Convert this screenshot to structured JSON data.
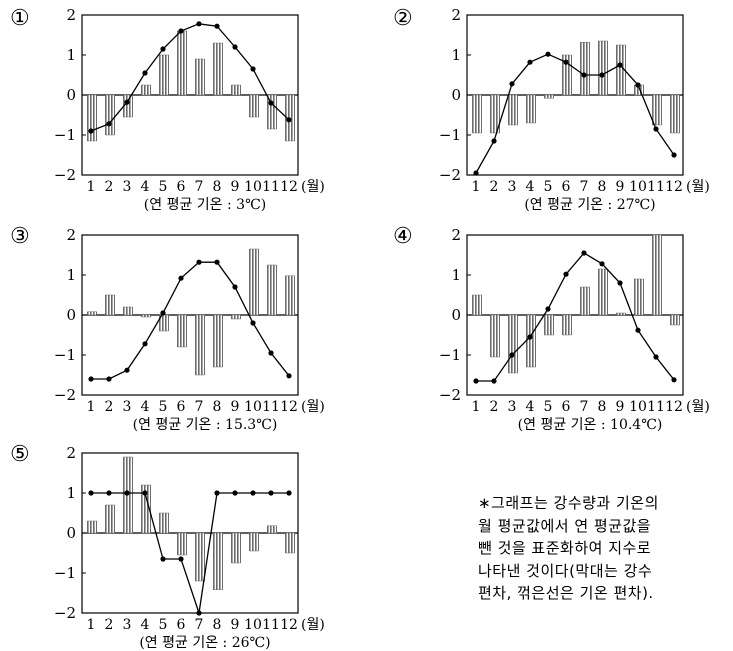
{
  "chart_data": [
    {
      "type": "bar+line",
      "panel_label": "①",
      "caption": "(연 평균 기온 : 3℃)",
      "categories": [
        "1",
        "2",
        "3",
        "4",
        "5",
        "6",
        "7",
        "8",
        "9",
        "10",
        "11",
        "12"
      ],
      "x_unit": "(월)",
      "ylim": [
        -2,
        2
      ],
      "yticks": [
        2,
        1,
        0,
        -1,
        -2
      ],
      "series": [
        {
          "kind": "bar",
          "values": [
            -1.15,
            -1.0,
            -0.55,
            0.25,
            1.0,
            1.6,
            0.9,
            1.3,
            0.25,
            -0.55,
            -0.85,
            -1.15
          ]
        },
        {
          "kind": "line",
          "values": [
            -0.9,
            -0.72,
            -0.18,
            0.55,
            1.15,
            1.6,
            1.78,
            1.72,
            1.2,
            0.65,
            -0.2,
            -0.62
          ]
        }
      ]
    },
    {
      "type": "bar+line",
      "panel_label": "②",
      "caption": "(연 평균 기온 : 27℃)",
      "categories": [
        "1",
        "2",
        "3",
        "4",
        "5",
        "6",
        "7",
        "8",
        "9",
        "10",
        "11",
        "12"
      ],
      "x_unit": "(월)",
      "ylim": [
        -2,
        2
      ],
      "yticks": [
        2,
        1,
        0,
        -1,
        -2
      ],
      "series": [
        {
          "kind": "bar",
          "values": [
            -0.95,
            -0.95,
            -0.75,
            -0.7,
            -0.08,
            1.0,
            1.32,
            1.35,
            1.25,
            0.25,
            -0.75,
            -0.95
          ]
        },
        {
          "kind": "line",
          "values": [
            -1.95,
            -1.15,
            0.28,
            0.82,
            1.02,
            0.82,
            0.5,
            0.5,
            0.75,
            0.25,
            -0.85,
            -1.5
          ]
        }
      ]
    },
    {
      "type": "bar+line",
      "panel_label": "③",
      "caption": "(연 평균 기온 : 15.3℃)",
      "categories": [
        "1",
        "2",
        "3",
        "4",
        "5",
        "6",
        "7",
        "8",
        "9",
        "10",
        "11",
        "12"
      ],
      "x_unit": "(월)",
      "ylim": [
        -2,
        2
      ],
      "yticks": [
        2,
        1,
        0,
        -1,
        -2
      ],
      "series": [
        {
          "kind": "bar",
          "values": [
            0.08,
            0.5,
            0.2,
            -0.05,
            -0.4,
            -0.8,
            -1.5,
            -1.3,
            -0.1,
            1.65,
            1.25,
            0.98
          ]
        },
        {
          "kind": "line",
          "values": [
            -1.6,
            -1.6,
            -1.38,
            -0.72,
            0.05,
            0.92,
            1.32,
            1.32,
            0.7,
            -0.2,
            -0.95,
            -1.52
          ]
        }
      ]
    },
    {
      "type": "bar+line",
      "panel_label": "④",
      "caption": "(연 평균 기온 : 10.4℃)",
      "categories": [
        "1",
        "2",
        "3",
        "4",
        "5",
        "6",
        "7",
        "8",
        "9",
        "10",
        "11",
        "12"
      ],
      "x_unit": "(월)",
      "ylim": [
        -2,
        2
      ],
      "yticks": [
        2,
        1,
        0,
        -1,
        -2
      ],
      "series": [
        {
          "kind": "bar",
          "values": [
            0.5,
            -1.05,
            -1.45,
            -1.3,
            -0.5,
            -0.5,
            0.7,
            1.15,
            0.05,
            0.9,
            2.0,
            -0.25
          ]
        },
        {
          "kind": "line",
          "values": [
            -1.65,
            -1.65,
            -1.0,
            -0.55,
            0.15,
            1.02,
            1.55,
            1.28,
            0.8,
            -0.38,
            -1.05,
            -1.62
          ]
        }
      ]
    },
    {
      "type": "bar+line",
      "panel_label": "⑤",
      "caption": "(연 평균 기온 : 26℃)",
      "categories": [
        "1",
        "2",
        "3",
        "4",
        "5",
        "6",
        "7",
        "8",
        "9",
        "10",
        "11",
        "12"
      ],
      "x_unit": "(월)",
      "ylim": [
        -2,
        2
      ],
      "yticks": [
        2,
        1,
        0,
        -1,
        -2
      ],
      "series": [
        {
          "kind": "bar",
          "values": [
            0.3,
            0.7,
            1.9,
            1.2,
            0.5,
            -0.55,
            -1.2,
            -1.42,
            -0.75,
            -0.45,
            0.18,
            -0.5
          ]
        },
        {
          "kind": "line",
          "values": [
            1.0,
            1.0,
            1.0,
            1.0,
            -0.65,
            -0.65,
            -2.0,
            1.0,
            1.0,
            1.0,
            1.0,
            1.0
          ]
        }
      ]
    }
  ],
  "note": {
    "lines": [
      "∗그래프는 강수량과 기온의",
      "월 평균값에서 연 평균값을",
      "뺀 것을 표준화하여 지수로",
      "나타낸 것이다(막대는 강수",
      "편차, 꺾은선은 기온 편차)."
    ]
  }
}
